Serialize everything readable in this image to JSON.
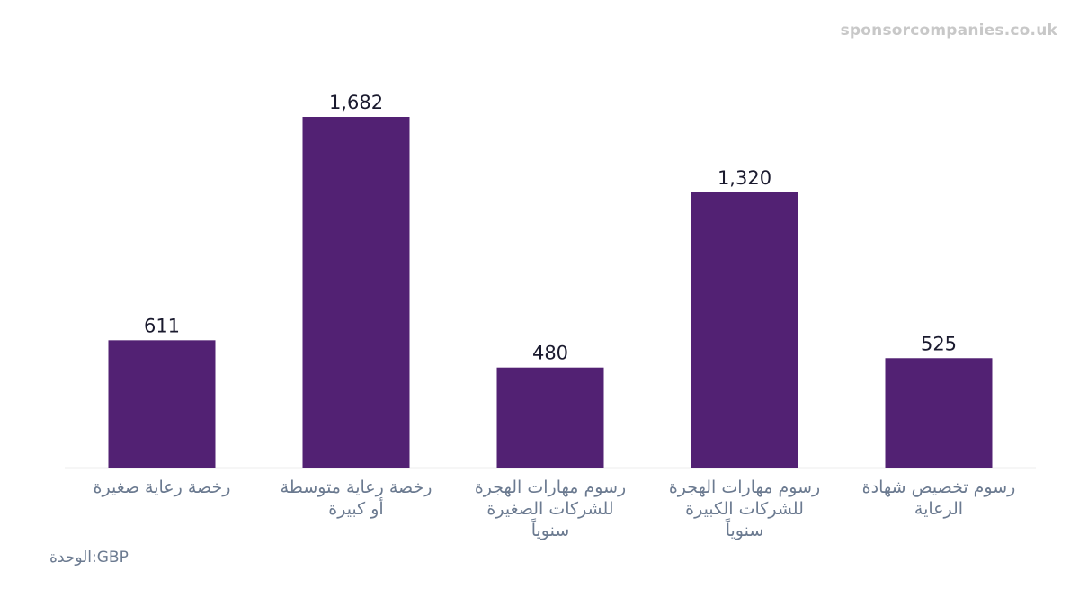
{
  "watermark": "sponsorcompanies.co.uk",
  "unit_note": "الوحدة:GBP",
  "colors": {
    "bar": "#522173",
    "value_label": "#1a1a2e",
    "category_label": "#6b7a90",
    "baseline": "#eeeeee"
  },
  "chart_data": {
    "type": "bar",
    "categories": [
      [
        "رخصة رعاية صغيرة"
      ],
      [
        "رخصة رعاية متوسطة",
        "أو كبيرة"
      ],
      [
        "رسوم مهارات الهجرة",
        "للشركات الصغيرة",
        "سنوياً"
      ],
      [
        "رسوم مهارات الهجرة",
        "للشركات الكبيرة",
        "سنوياً"
      ],
      [
        "رسوم تخصيص شهادة",
        "الرعاية"
      ]
    ],
    "values": [
      611,
      1682,
      480,
      1320,
      525
    ],
    "value_labels": [
      "611",
      "1,682",
      "480",
      "1,320",
      "525"
    ],
    "ylim": [
      0,
      1682
    ],
    "grid": false,
    "legend": "none"
  }
}
